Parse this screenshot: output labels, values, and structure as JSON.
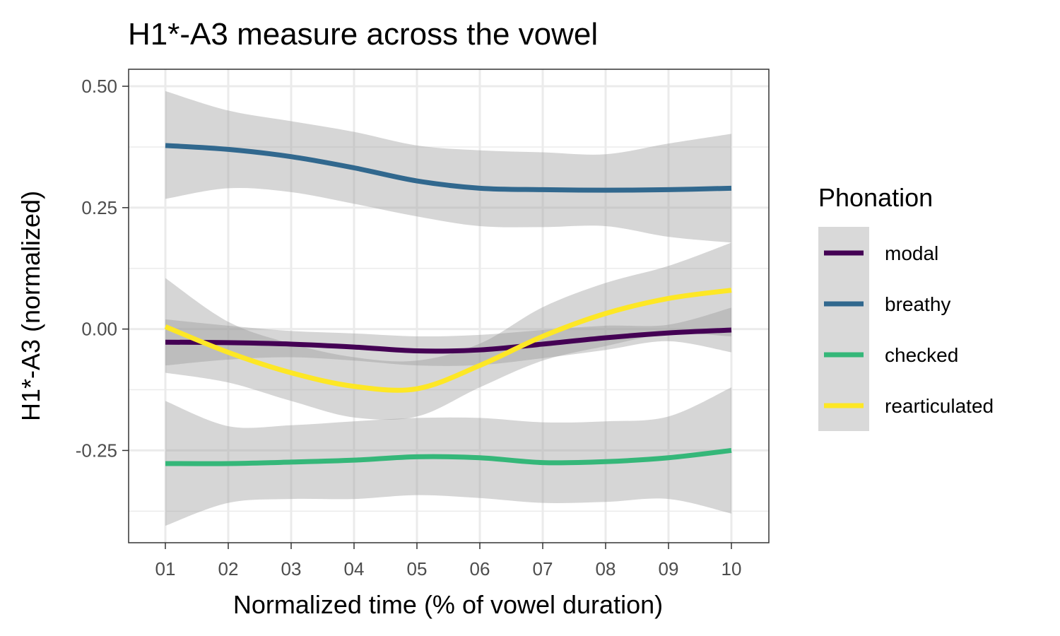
{
  "chart_data": {
    "type": "line",
    "title": "H1*-A3 measure across the vowel",
    "xlabel": "Normalized time (% of vowel duration)",
    "ylabel": "H1*-A3 (normalized)",
    "categories": [
      "01",
      "02",
      "03",
      "04",
      "05",
      "06",
      "07",
      "08",
      "09",
      "10"
    ],
    "x_ticks": [
      "01",
      "02",
      "03",
      "04",
      "05",
      "06",
      "07",
      "08",
      "09",
      "10"
    ],
    "y_ticks": [
      {
        "value": 0.5,
        "label": "0.50"
      },
      {
        "value": 0.25,
        "label": "0.25"
      },
      {
        "value": 0.0,
        "label": "0.00"
      },
      {
        "value": -0.25,
        "label": "-0.25"
      }
    ],
    "ylim": [
      -0.44,
      0.535
    ],
    "grid": true,
    "legend": {
      "title": "Phonation",
      "position": "right"
    },
    "series": [
      {
        "name": "modal",
        "color": "#440154",
        "values": [
          -0.027,
          -0.028,
          -0.031,
          -0.037,
          -0.045,
          -0.043,
          -0.031,
          -0.018,
          -0.008,
          -0.002
        ],
        "lower": [
          -0.075,
          -0.063,
          -0.058,
          -0.065,
          -0.075,
          -0.074,
          -0.06,
          -0.043,
          -0.025,
          -0.048
        ],
        "upper": [
          0.02,
          0.007,
          -0.004,
          -0.009,
          -0.015,
          -0.012,
          -0.002,
          0.007,
          0.009,
          0.044
        ]
      },
      {
        "name": "breathy",
        "color": "#31688E",
        "values": [
          0.378,
          0.37,
          0.355,
          0.332,
          0.305,
          0.29,
          0.287,
          0.286,
          0.287,
          0.29
        ],
        "lower": [
          0.268,
          0.29,
          0.282,
          0.258,
          0.232,
          0.212,
          0.21,
          0.212,
          0.19,
          0.178
        ],
        "upper": [
          0.49,
          0.45,
          0.428,
          0.406,
          0.378,
          0.368,
          0.364,
          0.36,
          0.382,
          0.402
        ]
      },
      {
        "name": "checked",
        "color": "#35B779",
        "values": [
          -0.277,
          -0.277,
          -0.274,
          -0.27,
          -0.263,
          -0.265,
          -0.275,
          -0.273,
          -0.265,
          -0.25
        ],
        "lower": [
          -0.405,
          -0.358,
          -0.35,
          -0.35,
          -0.342,
          -0.348,
          -0.358,
          -0.356,
          -0.35,
          -0.38
        ],
        "upper": [
          -0.148,
          -0.2,
          -0.198,
          -0.19,
          -0.183,
          -0.183,
          -0.192,
          -0.19,
          -0.18,
          -0.12
        ]
      },
      {
        "name": "rearticulated",
        "color": "#FDE725",
        "values": [
          0.005,
          -0.048,
          -0.09,
          -0.118,
          -0.123,
          -0.075,
          -0.015,
          0.032,
          0.063,
          0.08
        ],
        "lower": [
          -0.09,
          -0.11,
          -0.148,
          -0.182,
          -0.18,
          -0.12,
          -0.065,
          -0.035,
          -0.01,
          -0.015
        ],
        "upper": [
          0.105,
          0.015,
          -0.03,
          -0.058,
          -0.065,
          -0.03,
          0.045,
          0.095,
          0.13,
          0.178
        ]
      }
    ]
  }
}
